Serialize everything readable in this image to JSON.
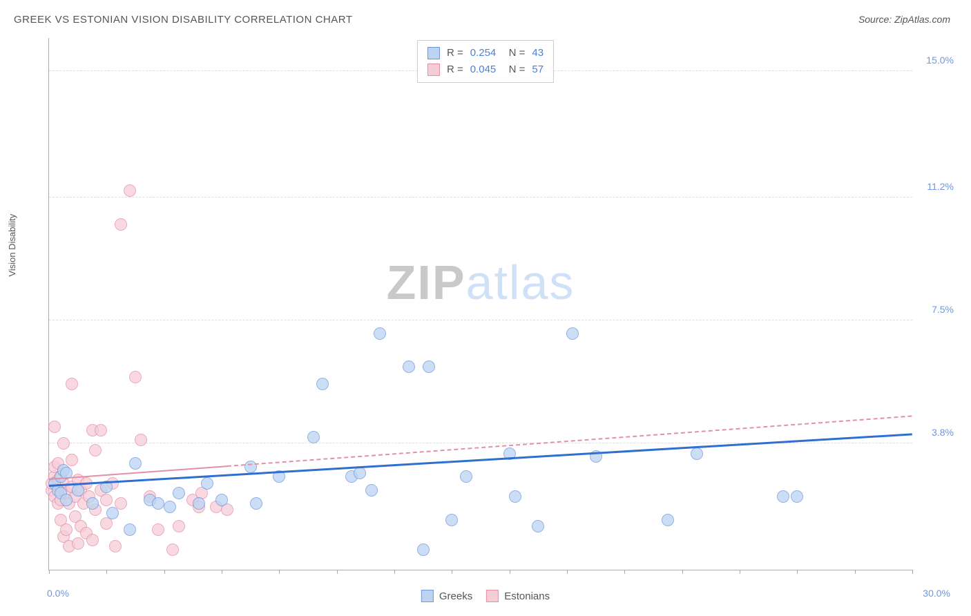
{
  "chart": {
    "type": "scatter",
    "title": "GREEK VS ESTONIAN VISION DISABILITY CORRELATION CHART",
    "source": "Source: ZipAtlas.com",
    "ylabel": "Vision Disability",
    "watermark_prefix": "ZIP",
    "watermark_suffix": "atlas",
    "background_color": "#ffffff",
    "grid_color": "#dddddd",
    "axis_color": "#aaaaaa",
    "label_color": "#555555",
    "value_color": "#6f97dd",
    "xlim": [
      0.0,
      30.0
    ],
    "ylim": [
      0.0,
      16.0
    ],
    "xtick_positions": [
      0,
      2,
      4,
      6,
      8,
      10,
      12,
      14,
      16,
      18,
      20,
      22,
      24,
      26,
      28,
      30
    ],
    "ygrid": [
      {
        "value": 3.8,
        "label": "3.8%"
      },
      {
        "value": 7.5,
        "label": "7.5%"
      },
      {
        "value": 11.2,
        "label": "11.2%"
      },
      {
        "value": 15.0,
        "label": "15.0%"
      }
    ],
    "xmin_label": "0.0%",
    "xmax_label": "30.0%",
    "series": [
      {
        "name": "Greeks",
        "fill_color": "#bcd4f2",
        "stroke_color": "#6f97dd",
        "marker_size": 18,
        "opacity": 0.75,
        "trend": {
          "y_at_xmin": 2.5,
          "y_at_xmax": 4.05,
          "color": "#2f6fd0",
          "width": 3,
          "dash": "solid",
          "extrapolate": false
        },
        "points": [
          [
            0.2,
            2.6
          ],
          [
            0.3,
            2.4
          ],
          [
            0.4,
            2.8
          ],
          [
            0.4,
            2.3
          ],
          [
            0.5,
            3.0
          ],
          [
            0.6,
            2.1
          ],
          [
            0.6,
            2.9
          ],
          [
            1.0,
            2.4
          ],
          [
            1.5,
            2.0
          ],
          [
            2.0,
            2.5
          ],
          [
            2.2,
            1.7
          ],
          [
            2.8,
            1.2
          ],
          [
            3.0,
            3.2
          ],
          [
            3.5,
            2.1
          ],
          [
            3.8,
            2.0
          ],
          [
            4.2,
            1.9
          ],
          [
            4.5,
            2.3
          ],
          [
            5.2,
            2.0
          ],
          [
            5.5,
            2.6
          ],
          [
            6.0,
            2.1
          ],
          [
            7.0,
            3.1
          ],
          [
            7.2,
            2.0
          ],
          [
            8.0,
            2.8
          ],
          [
            9.2,
            4.0
          ],
          [
            9.5,
            5.6
          ],
          [
            10.5,
            2.8
          ],
          [
            10.8,
            2.9
          ],
          [
            11.2,
            2.4
          ],
          [
            11.5,
            7.1
          ],
          [
            12.5,
            6.1
          ],
          [
            13.0,
            0.6
          ],
          [
            13.2,
            6.1
          ],
          [
            14.0,
            1.5
          ],
          [
            14.5,
            2.8
          ],
          [
            16.0,
            3.5
          ],
          [
            16.2,
            2.2
          ],
          [
            17.0,
            1.3
          ],
          [
            18.2,
            7.1
          ],
          [
            19.0,
            3.4
          ],
          [
            21.5,
            1.5
          ],
          [
            22.5,
            3.5
          ],
          [
            25.5,
            2.2
          ],
          [
            26.0,
            2.2
          ]
        ]
      },
      {
        "name": "Estonians",
        "fill_color": "#f6cdd7",
        "stroke_color": "#e38fa6",
        "marker_size": 18,
        "opacity": 0.75,
        "trend": {
          "y_at_xmin": 2.7,
          "y_at_xmax": 4.6,
          "color": "#e38fa6",
          "width": 2,
          "dash": "solid",
          "extrapolate": true
        },
        "points": [
          [
            0.1,
            2.4
          ],
          [
            0.1,
            2.6
          ],
          [
            0.2,
            2.2
          ],
          [
            0.2,
            2.8
          ],
          [
            0.2,
            3.1
          ],
          [
            0.2,
            4.3
          ],
          [
            0.3,
            2.0
          ],
          [
            0.3,
            2.5
          ],
          [
            0.3,
            2.7
          ],
          [
            0.3,
            3.2
          ],
          [
            0.4,
            1.5
          ],
          [
            0.4,
            2.1
          ],
          [
            0.4,
            2.4
          ],
          [
            0.5,
            1.0
          ],
          [
            0.5,
            2.6
          ],
          [
            0.5,
            3.8
          ],
          [
            0.6,
            1.2
          ],
          [
            0.6,
            2.3
          ],
          [
            0.7,
            0.7
          ],
          [
            0.7,
            2.0
          ],
          [
            0.8,
            2.5
          ],
          [
            0.8,
            3.3
          ],
          [
            0.8,
            5.6
          ],
          [
            0.9,
            1.6
          ],
          [
            0.9,
            2.2
          ],
          [
            1.0,
            0.8
          ],
          [
            1.0,
            2.7
          ],
          [
            1.1,
            1.3
          ],
          [
            1.1,
            2.4
          ],
          [
            1.2,
            2.0
          ],
          [
            1.3,
            1.1
          ],
          [
            1.3,
            2.6
          ],
          [
            1.4,
            2.2
          ],
          [
            1.5,
            0.9
          ],
          [
            1.5,
            4.2
          ],
          [
            1.6,
            1.8
          ],
          [
            1.6,
            3.6
          ],
          [
            1.8,
            2.4
          ],
          [
            1.8,
            4.2
          ],
          [
            2.0,
            1.4
          ],
          [
            2.0,
            2.1
          ],
          [
            2.2,
            2.6
          ],
          [
            2.3,
            0.7
          ],
          [
            2.5,
            10.4
          ],
          [
            2.5,
            2.0
          ],
          [
            2.8,
            11.4
          ],
          [
            3.0,
            5.8
          ],
          [
            3.2,
            3.9
          ],
          [
            3.5,
            2.2
          ],
          [
            3.8,
            1.2
          ],
          [
            4.3,
            0.6
          ],
          [
            4.5,
            1.3
          ],
          [
            5.0,
            2.1
          ],
          [
            5.2,
            1.9
          ],
          [
            5.3,
            2.3
          ],
          [
            5.8,
            1.9
          ],
          [
            6.2,
            1.8
          ]
        ]
      }
    ],
    "stats_legend": [
      {
        "series": 0,
        "R": "0.254",
        "N": "43"
      },
      {
        "series": 1,
        "R": "0.045",
        "N": "57"
      }
    ],
    "bottom_legend": [
      {
        "series": 0,
        "label": "Greeks"
      },
      {
        "series": 1,
        "label": "Estonians"
      }
    ]
  }
}
